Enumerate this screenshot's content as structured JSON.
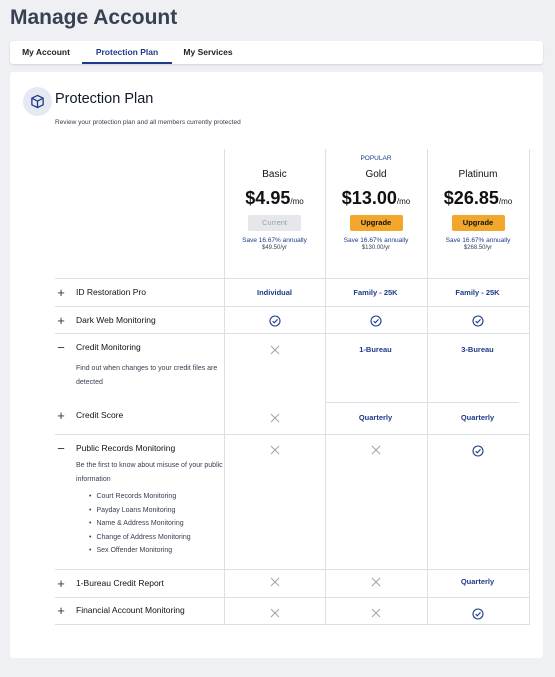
{
  "page": {
    "title": "Manage Account"
  },
  "tabs": [
    {
      "label": "My Account",
      "active": false
    },
    {
      "label": "Protection Plan",
      "active": true
    },
    {
      "label": "My Services",
      "active": false
    }
  ],
  "plan": {
    "title": "Protection Plan",
    "subtitle": "Review your protection plan and all members currently protected",
    "icon": "box-icon"
  },
  "plans": [
    {
      "name": "Basic",
      "popular": "",
      "price": "$4.95",
      "per": "/mo",
      "button": "Current",
      "button_type": "current",
      "save": "Save 16.67% annually",
      "yearly": "$49.50/yr"
    },
    {
      "name": "Gold",
      "popular": "POPULAR",
      "price": "$13.00",
      "per": "/mo",
      "button": "Upgrade",
      "button_type": "upgrade",
      "save": "Save 16.67% annually",
      "yearly": "$130.00/yr"
    },
    {
      "name": "Platinum",
      "popular": "",
      "price": "$26.85",
      "per": "/mo",
      "button": "Upgrade",
      "button_type": "upgrade",
      "save": "Save 16.67% annually",
      "yearly": "$268.50/yr"
    }
  ],
  "features": [
    {
      "toggle": "+",
      "label": "ID Restoration Pro",
      "cells": [
        "Individual",
        "Family - 25K",
        "Family - 25K"
      ]
    },
    {
      "toggle": "+",
      "label": "Dark Web Monitoring",
      "cells": [
        "check-icon",
        "check-icon",
        "check-icon"
      ]
    },
    {
      "toggle": "−",
      "label": "Credit Monitoring",
      "description": "Find out when changes to your credit files are detected",
      "cells": [
        "x-icon",
        "1-Bureau",
        "3-Bureau"
      ]
    },
    {
      "toggle": "+",
      "label": "Credit Score",
      "cells": [
        "x-icon",
        "Quarterly",
        "Quarterly"
      ]
    },
    {
      "toggle": "−",
      "label": "Public Records Monitoring",
      "description": "Be the first to know about misuse of your public information",
      "list": [
        "Court Records Monitoring",
        "Payday Loans Monitoring",
        "Name & Address Monitoring",
        "Change of Address Monitoring",
        "Sex Offender Monitoring"
      ],
      "cells": [
        "x-icon",
        "x-icon",
        "check-icon"
      ]
    },
    {
      "toggle": "+",
      "label": "1-Bureau Credit Report",
      "cells": [
        "x-icon",
        "x-icon",
        "Quarterly"
      ]
    },
    {
      "toggle": "+",
      "label": "Financial Account Monitoring",
      "cells": [
        "x-icon",
        "x-icon",
        "check-icon"
      ]
    }
  ],
  "colors": {
    "accent": "#1e3a8a",
    "upgrade": "#f0a72b",
    "background": "#eef0f3"
  }
}
